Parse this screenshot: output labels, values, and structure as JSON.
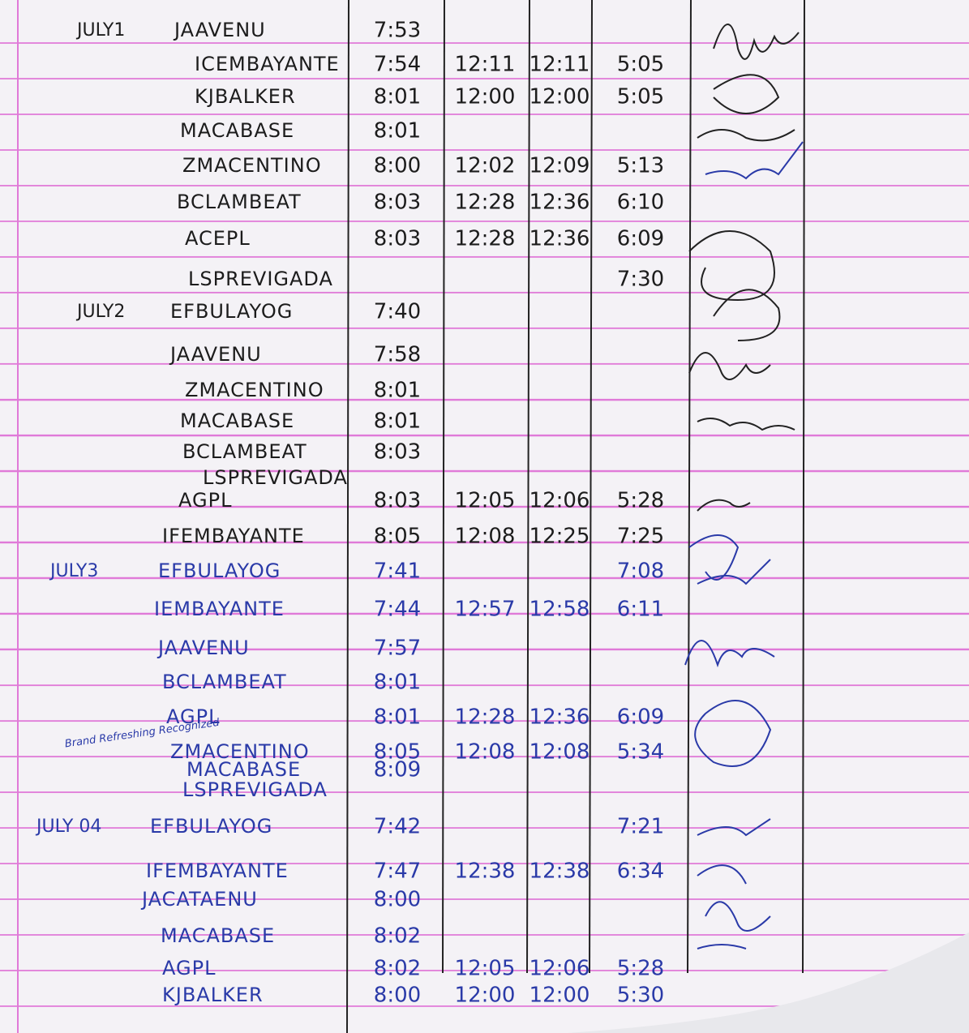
{
  "days": [
    {
      "date": "JULY1",
      "ink": "#1c1c1c",
      "rows": [
        {
          "name": "JAAVENU",
          "times": [
            "7:53",
            null,
            null,
            null
          ]
        },
        {
          "name": "ICEMBAYANTE",
          "times": [
            "7:54",
            "12:11",
            "12:11",
            "5:05"
          ]
        },
        {
          "name": "KJBALKER",
          "times": [
            "8:01",
            "12:00",
            "12:00",
            "5:05"
          ]
        },
        {
          "name": "MACABASE",
          "times": [
            "8:01",
            null,
            null,
            null
          ]
        },
        {
          "name": "ZMACENTINO",
          "times": [
            "8:00",
            "12:02",
            "12:09",
            "5:13"
          ]
        },
        {
          "name": "BCLAMBEAT",
          "times": [
            "8:03",
            "12:28",
            "12:36",
            "6:10"
          ]
        },
        {
          "name": "ACEPL",
          "times": [
            "8:03",
            "12:28",
            "12:36",
            "6:09"
          ]
        },
        {
          "name": "LSPREVIGADA",
          "times": [
            null,
            null,
            null,
            "7:30"
          ]
        }
      ]
    },
    {
      "date": "JULY2",
      "ink": "#1c1c1c",
      "rows": [
        {
          "name": "EFBULAYOG",
          "times": [
            "7:40",
            null,
            null,
            null
          ]
        },
        {
          "name": "JAAVENU",
          "times": [
            "7:58",
            null,
            null,
            null
          ]
        },
        {
          "name": "ZMACENTINO",
          "times": [
            "8:01",
            null,
            null,
            null
          ]
        },
        {
          "name": "MACABASE",
          "times": [
            "8:01",
            null,
            null,
            null
          ]
        },
        {
          "name": "BCLAMBEAT",
          "times": [
            "8:03",
            null,
            null,
            null
          ]
        },
        {
          "name": "LSPREVIGADA",
          "times": [
            null,
            null,
            null,
            null
          ]
        },
        {
          "name": "AGPL",
          "times": [
            "8:03",
            "12:05",
            "12:06",
            "5:28"
          ]
        },
        {
          "name": "IFEMBAYANTE",
          "times": [
            "8:05",
            "12:08",
            "12:25",
            "7:25"
          ]
        }
      ]
    },
    {
      "date": "JULY3",
      "ink": "#2a3aa8",
      "rows": [
        {
          "name": "EFBULAYOG",
          "times": [
            "7:41",
            null,
            null,
            "7:08"
          ]
        },
        {
          "name": "IEMBAYANTE",
          "times": [
            "7:44",
            "12:57",
            "12:58",
            "6:11"
          ]
        },
        {
          "name": "JAAVENU",
          "times": [
            "7:57",
            null,
            null,
            null
          ]
        },
        {
          "name": "BCLAMBEAT",
          "times": [
            "8:01",
            null,
            null,
            null
          ]
        },
        {
          "name": "AGPL",
          "times": [
            "8:01",
            "12:28",
            "12:36",
            "6:09"
          ]
        },
        {
          "name": "ZMACENTINO",
          "note": "Brand Refreshing Recognized",
          "times": [
            "8:05",
            "12:08",
            "12:08",
            "5:34"
          ]
        },
        {
          "name": "MACABASE",
          "times": [
            "8:09",
            null,
            null,
            null
          ]
        },
        {
          "name": "LSPREVIGADA",
          "times": [
            null,
            null,
            null,
            null
          ]
        }
      ]
    },
    {
      "date": "JULY 04",
      "ink": "#2a3aa8",
      "rows": [
        {
          "name": "EFBULAYOG",
          "times": [
            "7:42",
            null,
            null,
            "7:21"
          ]
        },
        {
          "name": "IFEMBAYANTE",
          "times": [
            "7:47",
            "12:38",
            "12:38",
            "6:34"
          ]
        },
        {
          "name": "JACATAENU",
          "times": [
            "8:00",
            null,
            null,
            null
          ]
        },
        {
          "name": "MACABASE",
          "times": [
            "8:02",
            null,
            null,
            null
          ]
        },
        {
          "name": "AGPL",
          "times": [
            "8:02",
            "12:05",
            "12:06",
            "5:28"
          ]
        },
        {
          "name": "KJBALKER",
          "times": [
            "8:00",
            "12:00",
            "12:00",
            "5:30"
          ]
        }
      ]
    }
  ]
}
